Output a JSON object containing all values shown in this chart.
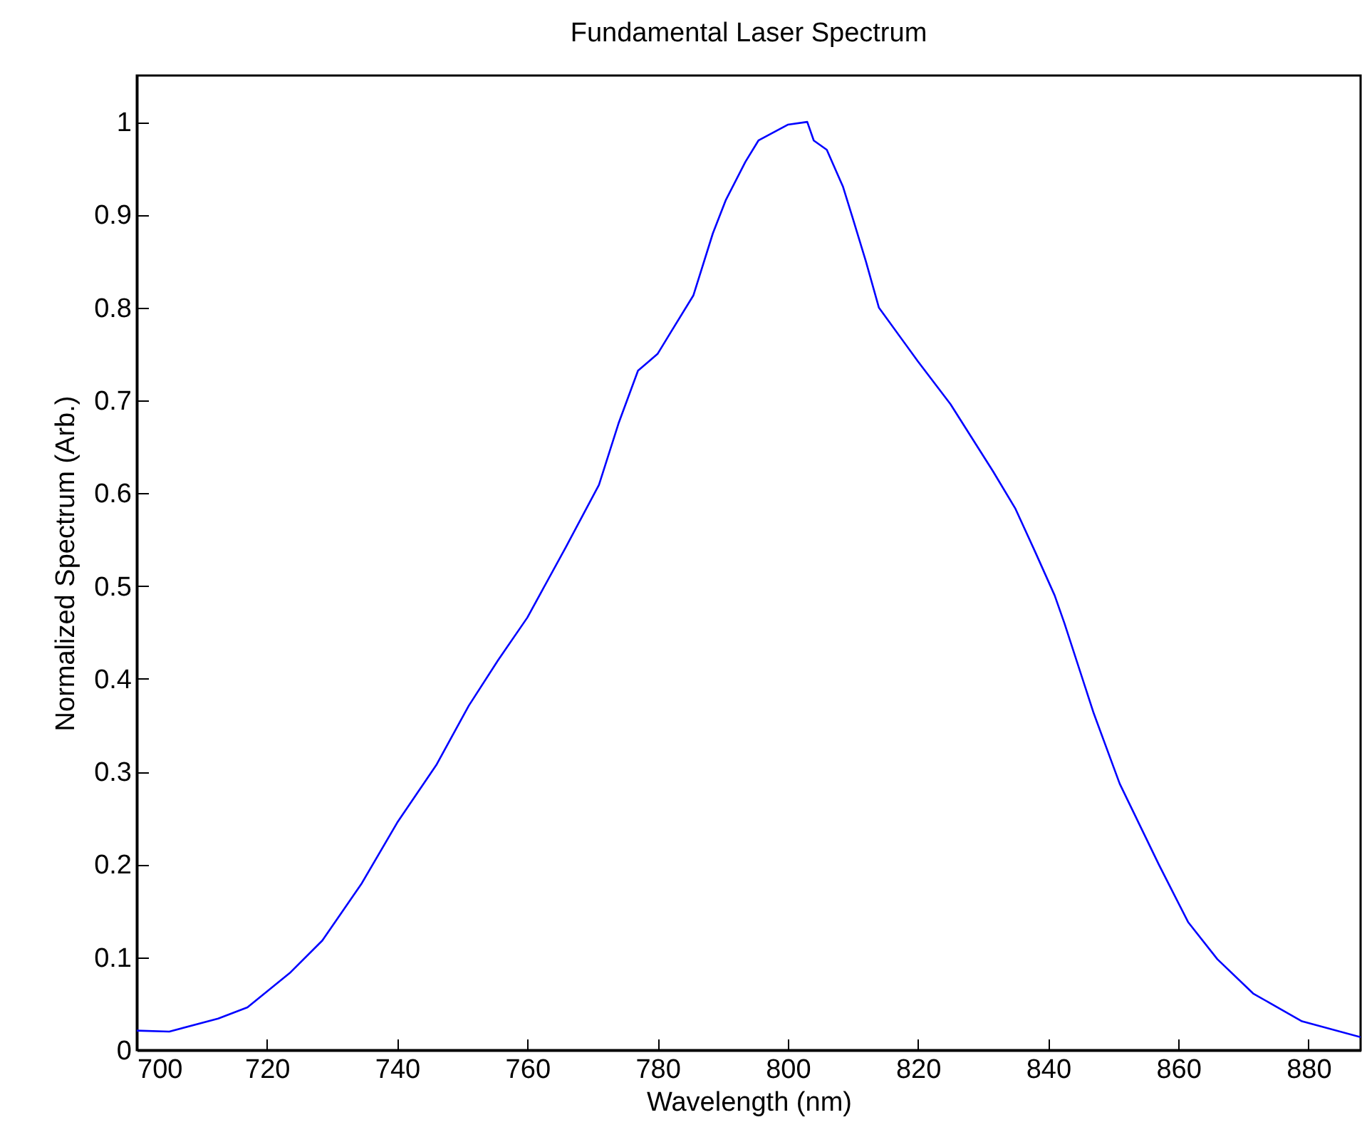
{
  "chart_data": {
    "type": "line",
    "title": "Fundamental Laser Spectrum",
    "xlabel": "Wavelength (nm)",
    "ylabel": "Normalized Spectrum (Arb.)",
    "xlim": [
      700,
      888
    ],
    "xticks": [
      700,
      720,
      740,
      760,
      780,
      800,
      820,
      840,
      860,
      880
    ],
    "ylim": [
      0,
      1.05
    ],
    "yticks": [
      0,
      0.1,
      0.2,
      0.3,
      0.4,
      0.5,
      0.6,
      0.7,
      0.8,
      0.9,
      1
    ],
    "grid": false,
    "series": [
      {
        "color": "#0000ff",
        "x": [
          700,
          705,
          712.5,
          717,
          723.5,
          728.5,
          734.5,
          740,
          746,
          751,
          755.5,
          760,
          766,
          771,
          774,
          777,
          780,
          782,
          785.5,
          788.5,
          790.5,
          793.5,
          795.5,
          800,
          803,
          804,
          806,
          808.5,
          810,
          812,
          814,
          820,
          825,
          831.5,
          835,
          838,
          841,
          842.5,
          847,
          851,
          857,
          861.5,
          866,
          871.5,
          879,
          888
        ],
        "values": [
          0.021,
          0.02,
          0.034,
          0.046,
          0.083,
          0.118,
          0.179,
          0.245,
          0.307,
          0.371,
          0.42,
          0.466,
          0.543,
          0.609,
          0.675,
          0.732,
          0.75,
          0.773,
          0.813,
          0.88,
          0.916,
          0.957,
          0.98,
          0.997,
          1.0,
          0.98,
          0.97,
          0.93,
          0.896,
          0.85,
          0.8,
          0.742,
          0.696,
          0.624,
          0.583,
          0.537,
          0.49,
          0.46,
          0.363,
          0.287,
          0.2,
          0.138,
          0.098,
          0.061,
          0.031,
          0.014
        ]
      }
    ]
  }
}
